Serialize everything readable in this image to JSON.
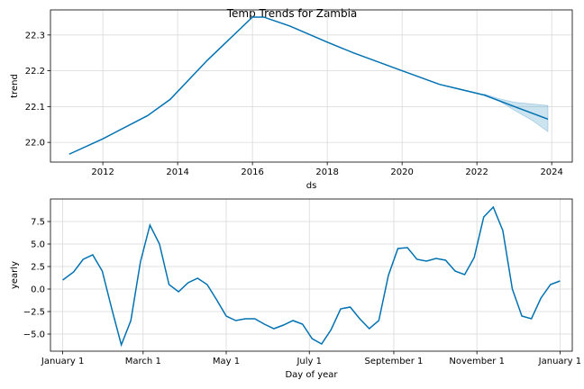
{
  "title": "Temp Trends for Zambia",
  "colors": {
    "line": "#0072B2",
    "band": "#0072B2"
  },
  "chart_data": [
    {
      "type": "line",
      "xlabel": "ds",
      "ylabel": "trend",
      "xlim": [
        2010.6,
        2024.55
      ],
      "ylim": [
        21.945,
        22.37
      ],
      "xticks": [
        2012,
        2014,
        2016,
        2018,
        2020,
        2022,
        2024
      ],
      "xtick_labels": [
        "2012",
        "2014",
        "2016",
        "2018",
        "2020",
        "2022",
        "2024"
      ],
      "yticks": [
        22.0,
        22.1,
        22.2,
        22.3
      ],
      "ytick_labels": [
        "22.0",
        "22.1",
        "22.2",
        "22.3"
      ],
      "grid": true,
      "series": [
        {
          "x": [
            2011.1,
            2012.0,
            2013.2,
            2013.8,
            2014.8,
            2016.0,
            2016.3,
            2017.0,
            2018.0,
            2018.7,
            2020.0,
            2021.0,
            2022.2,
            2023.0,
            2023.9
          ],
          "y": [
            21.967,
            22.01,
            22.075,
            22.12,
            22.23,
            22.35,
            22.35,
            22.325,
            22.28,
            22.25,
            22.2,
            22.162,
            22.132,
            22.1,
            22.065
          ]
        }
      ],
      "uncertainty": {
        "x": [
          2022.2,
          2022.6,
          2023.0,
          2023.5,
          2023.9
        ],
        "upper": [
          22.135,
          22.122,
          22.112,
          22.107,
          22.103
        ],
        "lower": [
          22.131,
          22.115,
          22.09,
          22.06,
          22.03
        ]
      }
    },
    {
      "type": "line",
      "xlabel": "Day of year",
      "ylabel": "yearly",
      "xlim": [
        -9,
        374
      ],
      "ylim": [
        -6.9,
        10.0
      ],
      "xticks": [
        0,
        59,
        120,
        181,
        243,
        304,
        365
      ],
      "xtick_labels": [
        "January 1",
        "March 1",
        "May 1",
        "July 1",
        "September 1",
        "November 1",
        "January 1"
      ],
      "yticks": [
        -5.0,
        -2.5,
        0.0,
        2.5,
        5.0,
        7.5
      ],
      "ytick_labels": [
        "−5.0",
        "−2.5",
        "0.0",
        "2.5",
        "5.0",
        "7.5"
      ],
      "grid": true,
      "series": [
        {
          "x": [
            0,
            8,
            15,
            22,
            29,
            36,
            43,
            50,
            57,
            64,
            71,
            78,
            85,
            92,
            99,
            106,
            113,
            120,
            127,
            134,
            141,
            148,
            155,
            162,
            169,
            176,
            183,
            190,
            197,
            204,
            211,
            218,
            225,
            232,
            239,
            246,
            253,
            260,
            267,
            274,
            281,
            288,
            295,
            302,
            309,
            316,
            323,
            330,
            337,
            344,
            351,
            358,
            365
          ],
          "y": [
            1.0,
            1.9,
            3.3,
            3.8,
            2.0,
            -2.2,
            -6.2,
            -3.5,
            3.0,
            7.1,
            5.0,
            0.5,
            -0.3,
            0.7,
            1.2,
            0.5,
            -1.2,
            -3.0,
            -3.5,
            -3.3,
            -3.3,
            -3.9,
            -4.4,
            -4.0,
            -3.5,
            -3.9,
            -5.5,
            -6.1,
            -4.5,
            -2.2,
            -2.0,
            -3.3,
            -4.4,
            -3.5,
            1.5,
            4.5,
            4.6,
            3.3,
            3.1,
            3.4,
            3.2,
            2.0,
            1.6,
            3.5,
            8.0,
            9.1,
            6.5,
            0.0,
            -3.0,
            -3.3,
            -1.0,
            0.5,
            0.9
          ]
        }
      ]
    }
  ]
}
